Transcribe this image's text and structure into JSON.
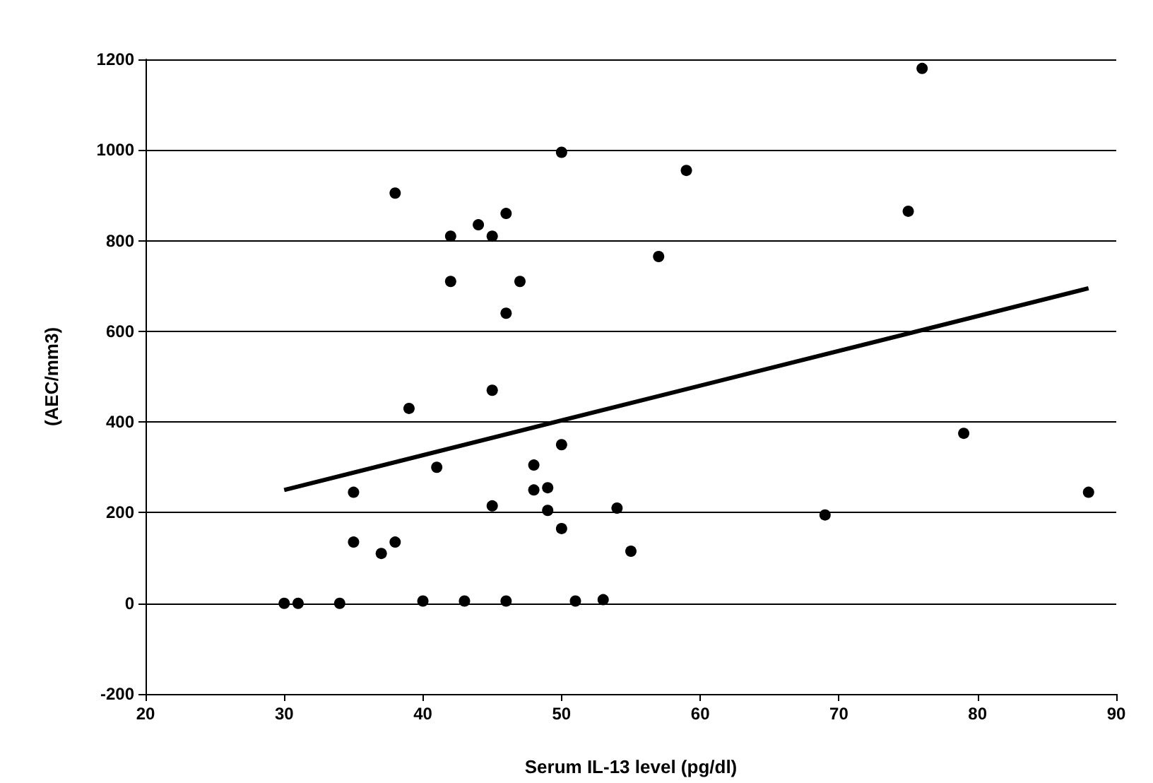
{
  "chart_data": {
    "type": "scatter",
    "xlabel": "Serum IL-13 level (pg/dl)",
    "ylabel": "(AEC/mm3)",
    "xlim": [
      20,
      90
    ],
    "xticks": [
      20,
      30,
      40,
      50,
      60,
      70,
      80,
      90
    ],
    "ylim": [
      -200,
      1200
    ],
    "yticks": [
      -200,
      0,
      200,
      400,
      600,
      800,
      1000,
      1200
    ],
    "grid": "y",
    "marker": "circle",
    "series": [
      {
        "color": "#000000",
        "x": [
          30,
          31,
          34,
          40,
          43,
          46,
          51,
          53,
          35,
          35,
          37,
          38,
          39,
          41,
          42,
          42,
          38,
          44,
          45,
          46,
          46,
          47,
          45,
          45,
          48,
          48,
          49,
          49,
          50,
          50,
          50,
          54,
          55,
          57,
          59,
          69,
          75,
          76,
          79,
          88
        ],
        "values": [
          0,
          0,
          0,
          5,
          5,
          5,
          5,
          8,
          245,
          135,
          110,
          135,
          430,
          300,
          810,
          710,
          905,
          835,
          810,
          860,
          640,
          710,
          470,
          215,
          305,
          250,
          255,
          205,
          995,
          350,
          165,
          210,
          115,
          765,
          955,
          195,
          865,
          1180,
          375,
          245
        ]
      },
      {
        "type": "line",
        "color": "#000000",
        "marker": "none",
        "x": [
          30,
          88
        ],
        "values": [
          250,
          695
        ]
      }
    ]
  }
}
